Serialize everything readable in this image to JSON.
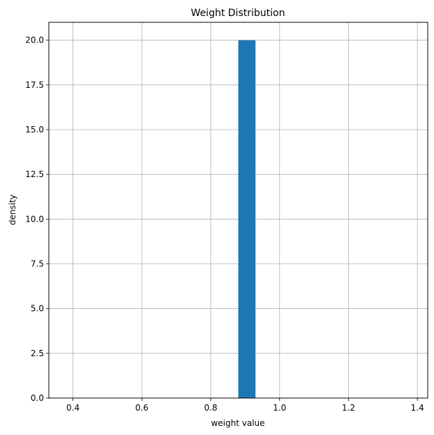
{
  "chart_data": {
    "type": "bar",
    "title": "Weight Distribution",
    "xlabel": "weight value",
    "ylabel": "density",
    "xlim": [
      0.33,
      1.43
    ],
    "ylim": [
      0,
      21
    ],
    "grid": true,
    "legend": null,
    "xticks": [
      0.4,
      0.6,
      0.8,
      1.0,
      1.2,
      1.4
    ],
    "xtick_labels": [
      "0.4",
      "0.6",
      "0.8",
      "1.0",
      "1.2",
      "1.4"
    ],
    "yticks": [
      0,
      2.5,
      5,
      7.5,
      10,
      12.5,
      15,
      17.5,
      20
    ],
    "ytick_labels": [
      "0.0",
      "2.5",
      "5.0",
      "7.5",
      "10.0",
      "12.5",
      "15.0",
      "17.5",
      "20.0"
    ],
    "bars": [
      {
        "x_start": 0.88,
        "x_end": 0.93,
        "height": 20.0
      }
    ],
    "bar_color": "#1f77b4"
  },
  "colors": {
    "bar": "#1f77b4",
    "grid": "#b0b0b0",
    "spine": "#000000"
  }
}
